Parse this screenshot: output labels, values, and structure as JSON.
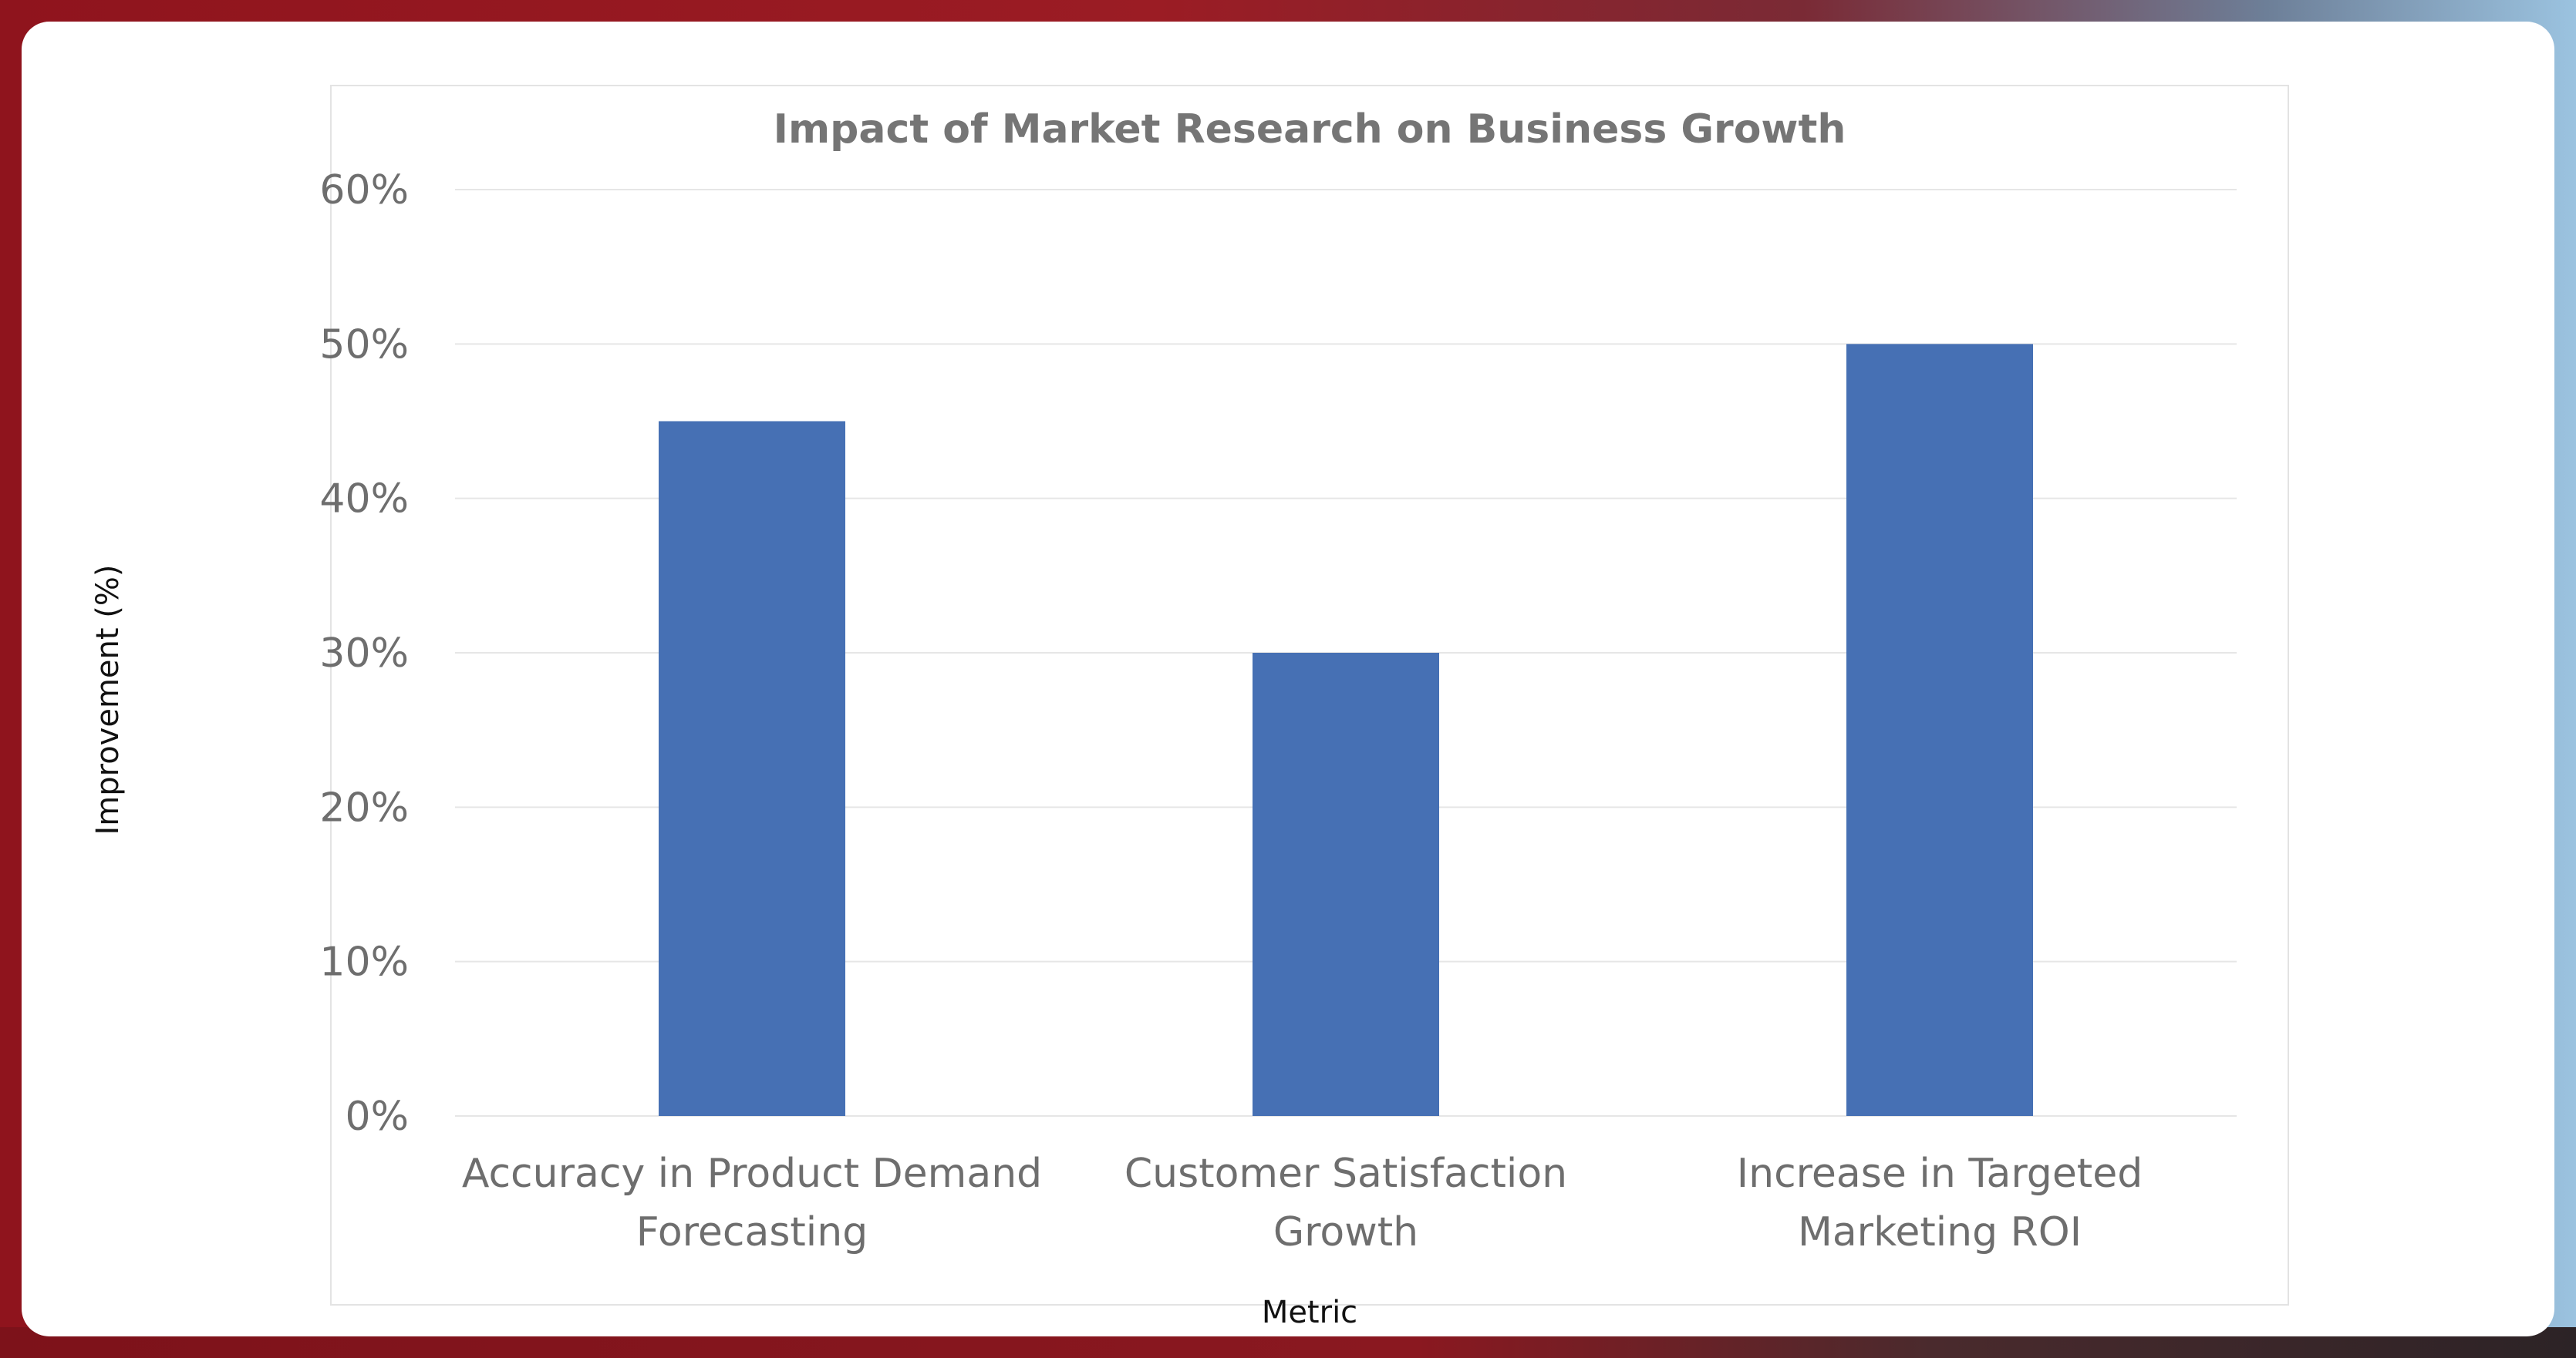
{
  "chart_data": {
    "type": "bar",
    "title": "Impact of Market Research on Business Growth",
    "xlabel": "Metric",
    "ylabel": "Improvement (%)",
    "categories": [
      [
        "Accuracy in Product Demand",
        "Forecasting"
      ],
      [
        "Customer Satisfaction",
        "Growth"
      ],
      [
        "Increase in Targeted",
        "Marketing ROI"
      ]
    ],
    "values": [
      45,
      30,
      50
    ],
    "ylim": [
      0,
      60
    ],
    "yticks": [
      "0%",
      "10%",
      "20%",
      "30%",
      "40%",
      "50%",
      "60%"
    ],
    "grid": true,
    "legend": "none",
    "bar_color": "#4670b4",
    "grid_color": "#e6e6e6"
  }
}
